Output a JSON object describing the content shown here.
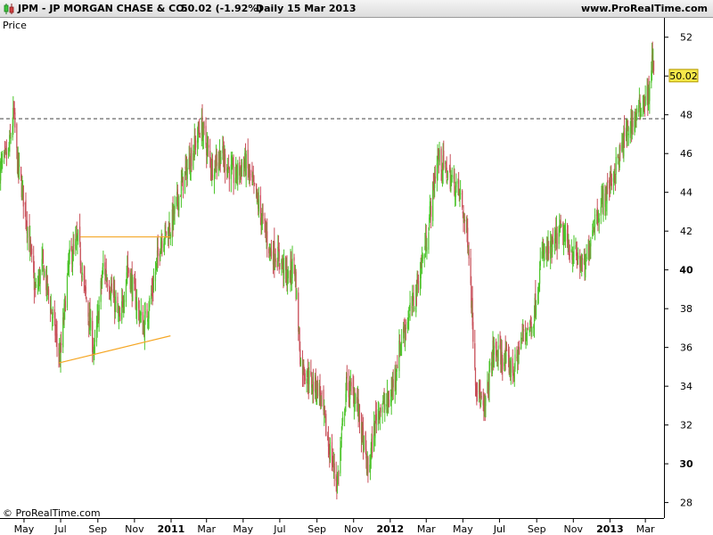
{
  "header": {
    "symbol": "JPM - JP MORGAN CHASE & CO.",
    "price_change": "50.02 (-1.92%)",
    "period": "Daily  15 Mar 2013",
    "website": "www.ProRealTime.com"
  },
  "panel": {
    "price_label": "Price",
    "copyright": "© ProRealTime.com"
  },
  "chart_data": {
    "type": "candlestick",
    "ylabel": "Price",
    "ylim": [
      27.2,
      53.0
    ],
    "y_ticks": [
      28,
      30,
      32,
      34,
      36,
      38,
      40,
      42,
      44,
      46,
      48,
      50,
      52
    ],
    "y_tick_bold": [
      30,
      40,
      50
    ],
    "x_ticks": [
      {
        "label": "May",
        "date": "2010-05-01",
        "bold": false
      },
      {
        "label": "Jul",
        "date": "2010-07-01",
        "bold": false
      },
      {
        "label": "Sep",
        "date": "2010-09-01",
        "bold": false
      },
      {
        "label": "Nov",
        "date": "2010-11-01",
        "bold": false
      },
      {
        "label": "2011",
        "date": "2011-01-01",
        "bold": true
      },
      {
        "label": "Mar",
        "date": "2011-03-01",
        "bold": false
      },
      {
        "label": "May",
        "date": "2011-05-01",
        "bold": false
      },
      {
        "label": "Jul",
        "date": "2011-07-01",
        "bold": false
      },
      {
        "label": "Sep",
        "date": "2011-09-01",
        "bold": false
      },
      {
        "label": "Nov",
        "date": "2011-11-01",
        "bold": false
      },
      {
        "label": "2012",
        "date": "2012-01-01",
        "bold": true
      },
      {
        "label": "Mar",
        "date": "2012-03-01",
        "bold": false
      },
      {
        "label": "May",
        "date": "2012-05-01",
        "bold": false
      },
      {
        "label": "Jul",
        "date": "2012-07-01",
        "bold": false
      },
      {
        "label": "Sep",
        "date": "2012-09-01",
        "bold": false
      },
      {
        "label": "Nov",
        "date": "2012-11-01",
        "bold": false
      },
      {
        "label": "2013",
        "date": "2013-01-01",
        "bold": true
      },
      {
        "label": "Mar",
        "date": "2013-03-01",
        "bold": false
      }
    ],
    "x_range": [
      "2010-03-22",
      "2013-04-01"
    ],
    "last_price": 50.02,
    "last_price_label": "50.02",
    "reference_line": 47.8,
    "up_color": "#4cc42a",
    "down_color": "#c8505a",
    "trend_color": "#f5a623",
    "trendlines": [
      {
        "from": [
          "2010-08-03",
          41.7
        ],
        "to": [
          "2010-12-31",
          41.7
        ]
      },
      {
        "from": [
          "2010-06-28",
          35.2
        ],
        "to": [
          "2010-12-31",
          36.6
        ]
      }
    ],
    "series": [
      {
        "name": "JPM",
        "anchors": [
          [
            "2010-03-22",
            45.2
          ],
          [
            "2010-04-05",
            46.0
          ],
          [
            "2010-04-14",
            48.1
          ],
          [
            "2010-04-20",
            45.5
          ],
          [
            "2010-05-03",
            43.2
          ],
          [
            "2010-05-20",
            38.8
          ],
          [
            "2010-06-01",
            40.3
          ],
          [
            "2010-06-15",
            38.0
          ],
          [
            "2010-06-30",
            35.4
          ],
          [
            "2010-07-15",
            40.5
          ],
          [
            "2010-07-30",
            41.5
          ],
          [
            "2010-08-10",
            39.0
          ],
          [
            "2010-08-26",
            35.7
          ],
          [
            "2010-09-10",
            40.2
          ],
          [
            "2010-09-25",
            38.8
          ],
          [
            "2010-10-08",
            37.2
          ],
          [
            "2010-10-20",
            40.2
          ],
          [
            "2010-11-05",
            38.2
          ],
          [
            "2010-11-16",
            37.0
          ],
          [
            "2010-12-01",
            39.0
          ],
          [
            "2010-12-15",
            41.6
          ],
          [
            "2010-12-31",
            42.2
          ],
          [
            "2011-01-20",
            44.5
          ],
          [
            "2011-02-05",
            46.0
          ],
          [
            "2011-02-20",
            47.5
          ],
          [
            "2011-03-10",
            45.3
          ],
          [
            "2011-03-25",
            46.0
          ],
          [
            "2011-04-15",
            44.8
          ],
          [
            "2011-05-05",
            45.5
          ],
          [
            "2011-05-25",
            43.5
          ],
          [
            "2011-06-15",
            41.0
          ],
          [
            "2011-07-01",
            40.6
          ],
          [
            "2011-07-15",
            39.5
          ],
          [
            "2011-07-25",
            40.5
          ],
          [
            "2011-08-05",
            35.2
          ],
          [
            "2011-08-22",
            34.2
          ],
          [
            "2011-09-05",
            33.8
          ],
          [
            "2011-09-20",
            31.0
          ],
          [
            "2011-10-05",
            29.0
          ],
          [
            "2011-10-20",
            34.0
          ],
          [
            "2011-11-05",
            33.5
          ],
          [
            "2011-11-25",
            29.5
          ],
          [
            "2011-12-10",
            32.8
          ],
          [
            "2011-12-31",
            33.2
          ],
          [
            "2012-01-20",
            36.5
          ],
          [
            "2012-02-10",
            38.5
          ],
          [
            "2012-03-01",
            41.5
          ],
          [
            "2012-03-20",
            45.8
          ],
          [
            "2012-04-05",
            45.0
          ],
          [
            "2012-04-25",
            44.0
          ],
          [
            "2012-05-10",
            41.5
          ],
          [
            "2012-05-22",
            34.5
          ],
          [
            "2012-06-05",
            32.5
          ],
          [
            "2012-06-20",
            35.8
          ],
          [
            "2012-07-05",
            35.5
          ],
          [
            "2012-07-25",
            34.8
          ],
          [
            "2012-08-10",
            36.8
          ],
          [
            "2012-08-25",
            37.2
          ],
          [
            "2012-09-10",
            40.8
          ],
          [
            "2012-09-25",
            41.0
          ],
          [
            "2012-10-10",
            42.0
          ],
          [
            "2012-10-25",
            41.2
          ],
          [
            "2012-11-10",
            40.5
          ],
          [
            "2012-11-20",
            40.0
          ],
          [
            "2012-12-05",
            42.5
          ],
          [
            "2012-12-20",
            43.5
          ],
          [
            "2013-01-10",
            45.2
          ],
          [
            "2013-01-30",
            47.2
          ],
          [
            "2013-02-15",
            48.0
          ],
          [
            "2013-03-01",
            49.0
          ],
          [
            "2013-03-08",
            49.0
          ],
          [
            "2013-03-12",
            51.2
          ],
          [
            "2013-03-15",
            50.02
          ]
        ]
      }
    ]
  }
}
